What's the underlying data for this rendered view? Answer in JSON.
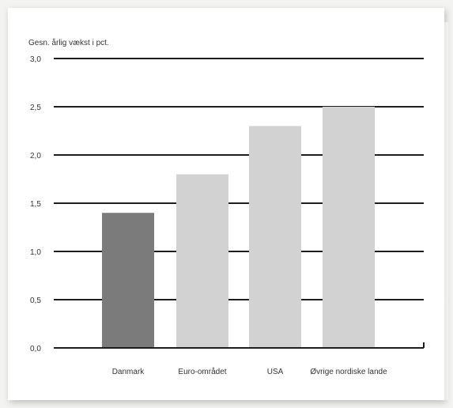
{
  "chart_data": {
    "type": "bar",
    "title": "",
    "ylabel": "Gesn. årlig vækst i pct.",
    "xlabel": "",
    "categories": [
      "Danmark",
      "Euro-området",
      "USA",
      "Øvrige nordiske lande"
    ],
    "values": [
      1.4,
      1.8,
      2.3,
      2.5
    ],
    "ylim": [
      0.0,
      3.0
    ],
    "yticks": [
      "0,0",
      "0,5",
      "1,0",
      "1,5",
      "2,0",
      "2,5",
      "3,0"
    ],
    "ytick_values": [
      0.0,
      0.5,
      1.0,
      1.5,
      2.0,
      2.5,
      3.0
    ],
    "grid": true,
    "colors": {
      "highlight_bar": "#7b7b7b",
      "bar": "#d2d2d2",
      "gridline": "#1e1e1e",
      "text": "#333333"
    }
  }
}
